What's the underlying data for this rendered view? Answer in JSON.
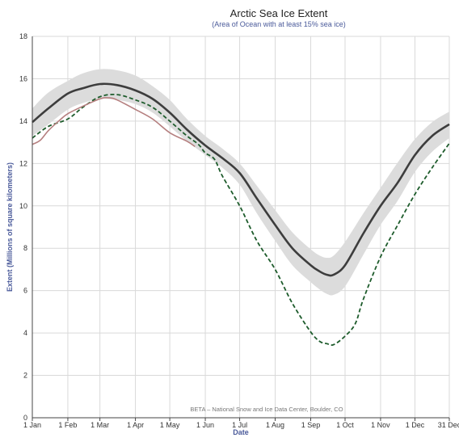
{
  "chart_data": {
    "type": "line",
    "title": "Arctic Sea Ice Extent",
    "subtitle": "(Area of Ocean with at least 15% sea ice)",
    "xlabel": "Date",
    "ylabel": "Extent (Millions of square kilometers)",
    "credit": "BETA – National Snow and Ice Data Center, Boulder, CO",
    "ylim": [
      0,
      18
    ],
    "yticks": [
      0,
      2,
      4,
      6,
      8,
      10,
      12,
      14,
      16,
      18
    ],
    "xlim": [
      1,
      365
    ],
    "xticks": [
      {
        "day": 1,
        "label": "1 Jan"
      },
      {
        "day": 32,
        "label": "1 Feb"
      },
      {
        "day": 60,
        "label": "1 Mar"
      },
      {
        "day": 91,
        "label": "1 Apr"
      },
      {
        "day": 121,
        "label": "1 May"
      },
      {
        "day": 152,
        "label": "1 Jun"
      },
      {
        "day": 182,
        "label": "1 Jul"
      },
      {
        "day": 213,
        "label": "1 Aug"
      },
      {
        "day": 244,
        "label": "1 Sep"
      },
      {
        "day": 274,
        "label": "1 Oct"
      },
      {
        "day": 305,
        "label": "1 Nov"
      },
      {
        "day": 335,
        "label": "1 Dec"
      },
      {
        "day": 365,
        "label": "31 Dec"
      }
    ],
    "grid": true,
    "colors": {
      "median": "#3d3d3d",
      "band": "#dcdcdc",
      "dashed": "#1e5c2c",
      "current": "#b57f7f",
      "grid": "#d9d9d9",
      "axis": "#444444"
    },
    "series": [
      {
        "key": "median",
        "style": "solid",
        "x": [
          1,
          15,
          32,
          45,
          60,
          75,
          91,
          106,
          121,
          136,
          152,
          167,
          182,
          197,
          213,
          228,
          244,
          252,
          258,
          264,
          274,
          290,
          305,
          320,
          335,
          350,
          365
        ],
        "y": [
          13.95,
          14.6,
          15.3,
          15.55,
          15.75,
          15.7,
          15.45,
          15.05,
          14.4,
          13.6,
          12.85,
          12.25,
          11.55,
          10.35,
          9.1,
          8.0,
          7.2,
          6.9,
          6.75,
          6.75,
          7.2,
          8.7,
          10.0,
          11.1,
          12.4,
          13.3,
          13.85
        ]
      },
      {
        "key": "band_upper",
        "style": "band",
        "x": [
          1,
          15,
          32,
          45,
          60,
          75,
          91,
          106,
          121,
          136,
          152,
          167,
          182,
          197,
          213,
          228,
          244,
          252,
          258,
          264,
          274,
          290,
          305,
          320,
          335,
          350,
          365
        ],
        "y": [
          14.6,
          15.35,
          15.9,
          16.25,
          16.45,
          16.4,
          16.15,
          15.65,
          15.0,
          14.1,
          13.3,
          12.7,
          12.0,
          10.95,
          9.8,
          8.75,
          7.95,
          7.65,
          7.55,
          7.65,
          8.3,
          9.65,
          10.85,
          12.05,
          13.15,
          13.95,
          14.45
        ]
      },
      {
        "key": "band_lower",
        "style": "band",
        "x": [
          1,
          15,
          32,
          45,
          60,
          75,
          91,
          106,
          121,
          136,
          152,
          167,
          182,
          197,
          213,
          228,
          244,
          252,
          258,
          264,
          274,
          290,
          305,
          320,
          335,
          350,
          365
        ],
        "y": [
          13.3,
          13.85,
          14.55,
          14.85,
          15.05,
          15.0,
          14.8,
          14.4,
          13.75,
          13.05,
          12.4,
          11.8,
          11.0,
          9.65,
          8.35,
          7.2,
          6.4,
          6.05,
          5.85,
          5.8,
          6.2,
          7.7,
          9.1,
          10.25,
          11.6,
          12.55,
          13.2
        ]
      },
      {
        "key": "dashed",
        "style": "dashed",
        "x": [
          1,
          15,
          32,
          45,
          60,
          75,
          91,
          106,
          121,
          136,
          146,
          152,
          160,
          167,
          182,
          197,
          213,
          228,
          244,
          252,
          258,
          264,
          274,
          283,
          290,
          305,
          320,
          335,
          350,
          365
        ],
        "y": [
          13.2,
          13.75,
          14.1,
          14.65,
          15.15,
          15.25,
          15.0,
          14.65,
          14.0,
          13.3,
          12.9,
          12.5,
          12.2,
          11.4,
          10.0,
          8.35,
          7.0,
          5.4,
          4.05,
          3.6,
          3.5,
          3.45,
          3.85,
          4.45,
          5.6,
          7.6,
          9.1,
          10.55,
          11.8,
          12.95
        ]
      },
      {
        "key": "current",
        "style": "solid-thin",
        "x": [
          1,
          8,
          15,
          25,
          32,
          45,
          60,
          68,
          75,
          91,
          106,
          121,
          136,
          143
        ],
        "y": [
          12.9,
          13.1,
          13.55,
          14.05,
          14.35,
          14.7,
          15.05,
          15.1,
          15.0,
          14.55,
          14.1,
          13.45,
          13.05,
          12.8
        ]
      }
    ]
  }
}
